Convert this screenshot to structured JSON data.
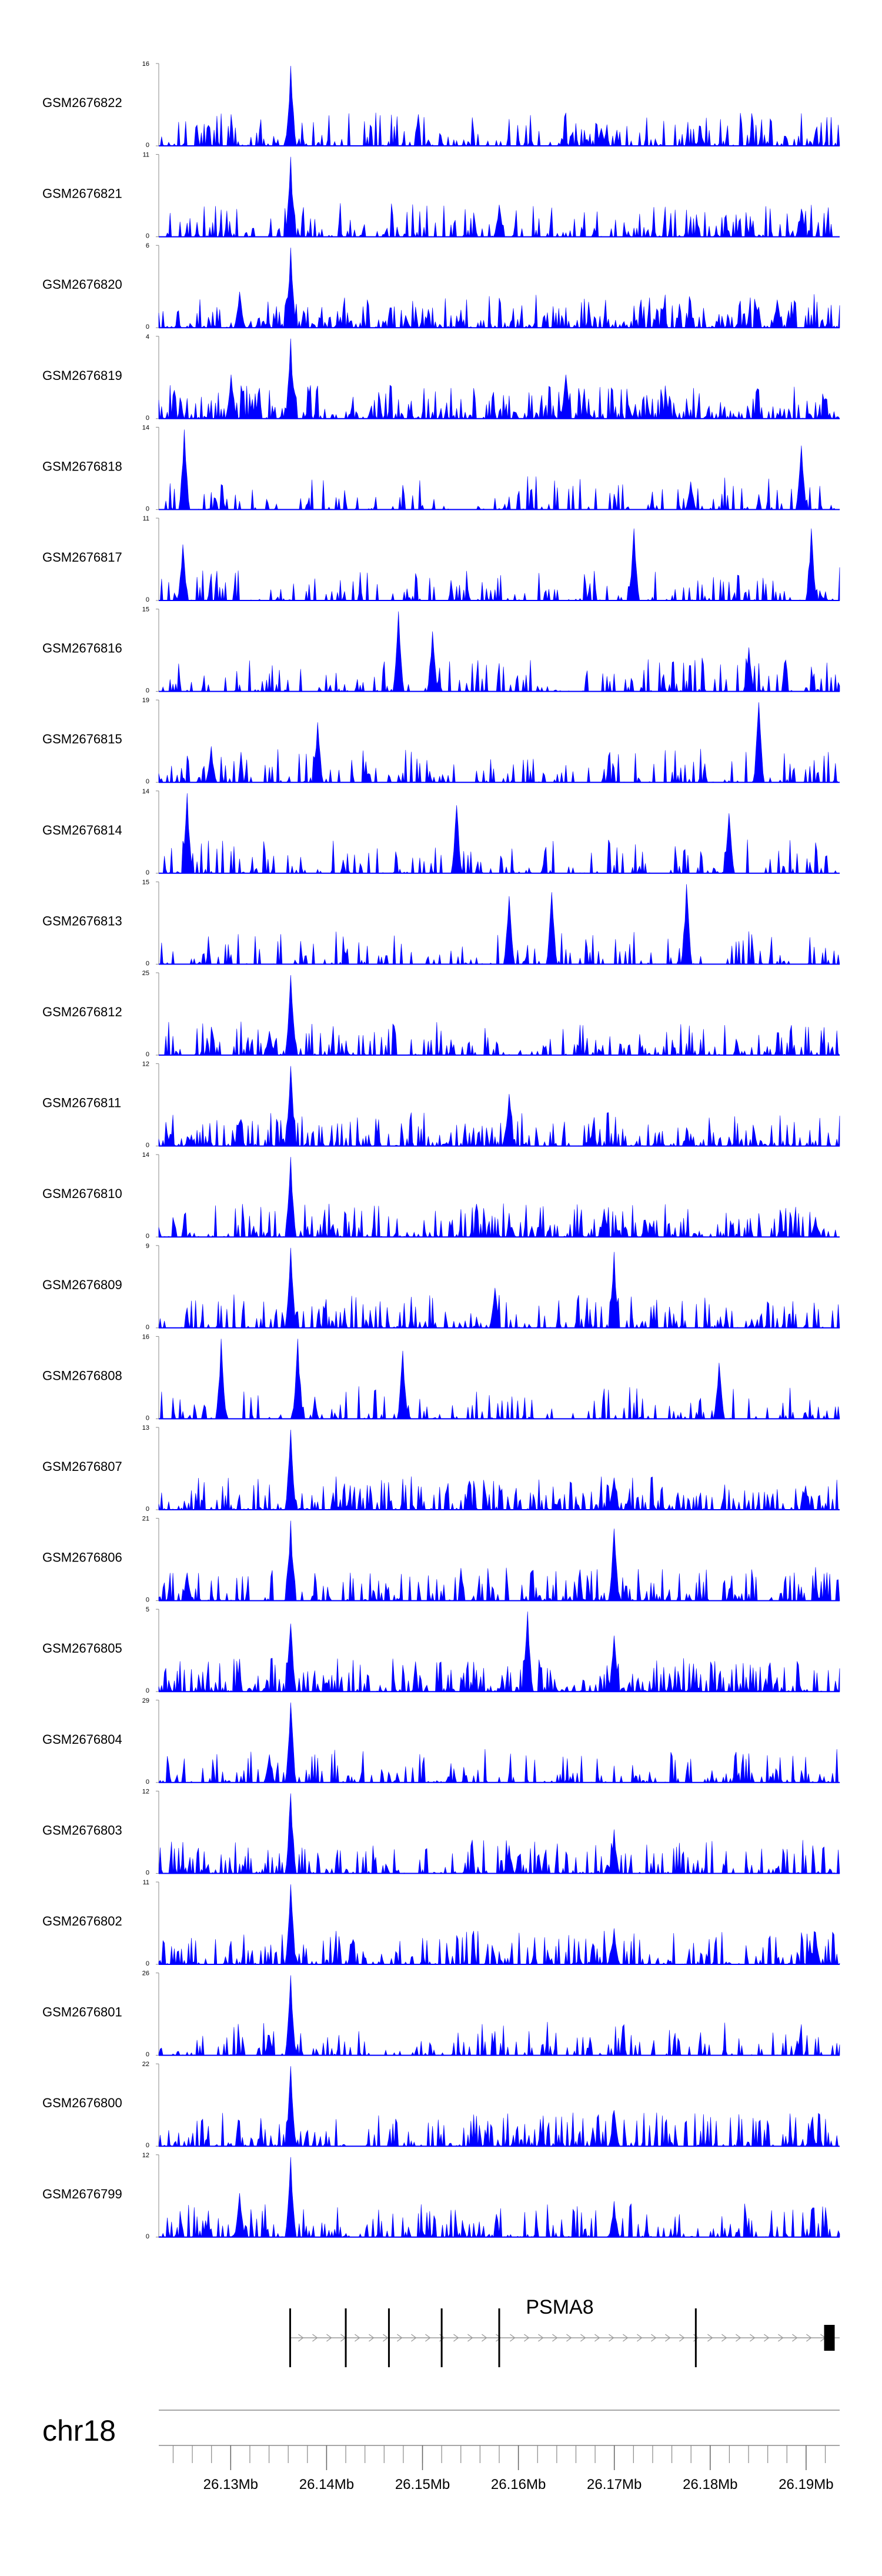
{
  "chart_data": {
    "type": "area",
    "title": "",
    "chromosome": "chr18",
    "x_range_mb": [
      26.1225,
      26.1935
    ],
    "fill_color": "#0000ff",
    "tracks": [
      {
        "name": "GSM2676822",
        "ymax": "16",
        "ymin": "0",
        "seed": 1,
        "density": 0.55,
        "peaks": [
          {
            "x": 26.1362,
            "h": 1.0
          },
          {
            "x": 26.1687,
            "h": 0.22
          },
          {
            "x": 26.179,
            "h": 0.15
          }
        ]
      },
      {
        "name": "GSM2676821",
        "ymax": "11",
        "ymin": "0",
        "seed": 2,
        "density": 0.5,
        "peaks": [
          {
            "x": 26.1362,
            "h": 1.0
          },
          {
            "x": 26.158,
            "h": 0.4
          },
          {
            "x": 26.1895,
            "h": 0.35
          }
        ]
      },
      {
        "name": "GSM2676820",
        "ymax": "6",
        "ymin": "0",
        "seed": 3,
        "density": 0.7,
        "peaks": [
          {
            "x": 26.1362,
            "h": 1.0
          },
          {
            "x": 26.131,
            "h": 0.45
          },
          {
            "x": 26.187,
            "h": 0.35
          }
        ]
      },
      {
        "name": "GSM2676819",
        "ymax": "4",
        "ymin": "0",
        "seed": 4,
        "density": 0.75,
        "peaks": [
          {
            "x": 26.1362,
            "h": 1.0
          },
          {
            "x": 26.13,
            "h": 0.55
          },
          {
            "x": 26.165,
            "h": 0.55
          }
        ]
      },
      {
        "name": "GSM2676818",
        "ymax": "14",
        "ymin": "0",
        "seed": 5,
        "density": 0.35,
        "peaks": [
          {
            "x": 26.1252,
            "h": 1.0
          },
          {
            "x": 26.1895,
            "h": 0.8
          },
          {
            "x": 26.178,
            "h": 0.35
          }
        ]
      },
      {
        "name": "GSM2676817",
        "ymax": "11",
        "ymin": "0",
        "seed": 6,
        "density": 0.4,
        "peaks": [
          {
            "x": 26.172,
            "h": 0.9
          },
          {
            "x": 26.1905,
            "h": 0.9
          },
          {
            "x": 26.125,
            "h": 0.7
          }
        ]
      },
      {
        "name": "GSM2676816",
        "ymax": "15",
        "ymin": "0",
        "seed": 7,
        "density": 0.4,
        "peaks": [
          {
            "x": 26.1475,
            "h": 1.0
          },
          {
            "x": 26.151,
            "h": 0.75
          },
          {
            "x": 26.184,
            "h": 0.55
          }
        ]
      },
      {
        "name": "GSM2676815",
        "ymax": "19",
        "ymin": "0",
        "seed": 8,
        "density": 0.38,
        "peaks": [
          {
            "x": 26.185,
            "h": 1.0
          },
          {
            "x": 26.139,
            "h": 0.75
          },
          {
            "x": 26.128,
            "h": 0.45
          }
        ]
      },
      {
        "name": "GSM2676814",
        "ymax": "14",
        "ymin": "0",
        "seed": 9,
        "density": 0.38,
        "peaks": [
          {
            "x": 26.1255,
            "h": 1.0
          },
          {
            "x": 26.1535,
            "h": 0.85
          },
          {
            "x": 26.182,
            "h": 0.75
          }
        ]
      },
      {
        "name": "GSM2676813",
        "ymax": "15",
        "ymin": "0",
        "seed": 10,
        "density": 0.35,
        "peaks": [
          {
            "x": 26.1775,
            "h": 1.0
          },
          {
            "x": 26.1635,
            "h": 0.9
          },
          {
            "x": 26.159,
            "h": 0.85
          }
        ]
      },
      {
        "name": "GSM2676812",
        "ymax": "25",
        "ymin": "0",
        "seed": 11,
        "density": 0.55,
        "peaks": [
          {
            "x": 26.1362,
            "h": 1.0
          },
          {
            "x": 26.134,
            "h": 0.3
          }
        ]
      },
      {
        "name": "GSM2676811",
        "ymax": "12",
        "ymin": "0",
        "seed": 12,
        "density": 0.6,
        "peaks": [
          {
            "x": 26.1362,
            "h": 1.0
          },
          {
            "x": 26.159,
            "h": 0.65
          },
          {
            "x": 26.131,
            "h": 0.3
          }
        ]
      },
      {
        "name": "GSM2676810",
        "ymax": "14",
        "ymin": "0",
        "seed": 13,
        "density": 0.6,
        "peaks": [
          {
            "x": 26.1362,
            "h": 1.0
          },
          {
            "x": 26.169,
            "h": 0.35
          },
          {
            "x": 26.191,
            "h": 0.25
          }
        ]
      },
      {
        "name": "GSM2676809",
        "ymax": "9",
        "ymin": "0",
        "seed": 14,
        "density": 0.55,
        "peaks": [
          {
            "x": 26.1362,
            "h": 1.0
          },
          {
            "x": 26.17,
            "h": 0.95
          },
          {
            "x": 26.1575,
            "h": 0.5
          }
        ]
      },
      {
        "name": "GSM2676808",
        "ymax": "16",
        "ymin": "0",
        "seed": 15,
        "density": 0.35,
        "peaks": [
          {
            "x": 26.129,
            "h": 1.0
          },
          {
            "x": 26.137,
            "h": 1.0
          },
          {
            "x": 26.148,
            "h": 0.85
          },
          {
            "x": 26.181,
            "h": 0.7
          }
        ]
      },
      {
        "name": "GSM2676807",
        "ymax": "13",
        "ymin": "0",
        "seed": 16,
        "density": 0.6,
        "peaks": [
          {
            "x": 26.1362,
            "h": 1.0
          },
          {
            "x": 26.17,
            "h": 0.4
          },
          {
            "x": 26.19,
            "h": 0.3
          }
        ]
      },
      {
        "name": "GSM2676806",
        "ymax": "21",
        "ymin": "0",
        "seed": 17,
        "density": 0.5,
        "peaks": [
          {
            "x": 26.1362,
            "h": 1.0
          },
          {
            "x": 26.17,
            "h": 0.9
          },
          {
            "x": 26.1255,
            "h": 0.35
          }
        ]
      },
      {
        "name": "GSM2676805",
        "ymax": "5",
        "ymin": "0",
        "seed": 18,
        "density": 0.7,
        "peaks": [
          {
            "x": 26.161,
            "h": 1.0
          },
          {
            "x": 26.1362,
            "h": 0.85
          },
          {
            "x": 26.17,
            "h": 0.7
          }
        ]
      },
      {
        "name": "GSM2676804",
        "ymax": "29",
        "ymin": "0",
        "seed": 19,
        "density": 0.45,
        "peaks": [
          {
            "x": 26.1362,
            "h": 1.0
          },
          {
            "x": 26.134,
            "h": 0.35
          }
        ]
      },
      {
        "name": "GSM2676803",
        "ymax": "12",
        "ymin": "0",
        "seed": 20,
        "density": 0.6,
        "peaks": [
          {
            "x": 26.1362,
            "h": 1.0
          },
          {
            "x": 26.17,
            "h": 0.55
          },
          {
            "x": 26.159,
            "h": 0.35
          }
        ]
      },
      {
        "name": "GSM2676802",
        "ymax": "11",
        "ymin": "0",
        "seed": 21,
        "density": 0.6,
        "peaks": [
          {
            "x": 26.1362,
            "h": 1.0
          },
          {
            "x": 26.17,
            "h": 0.45
          },
          {
            "x": 26.191,
            "h": 0.4
          }
        ]
      },
      {
        "name": "GSM2676801",
        "ymax": "26",
        "ymin": "0",
        "seed": 22,
        "density": 0.4,
        "peaks": [
          {
            "x": 26.1362,
            "h": 1.0
          },
          {
            "x": 26.134,
            "h": 0.25
          }
        ]
      },
      {
        "name": "GSM2676800",
        "ymax": "22",
        "ymin": "0",
        "seed": 23,
        "density": 0.55,
        "peaks": [
          {
            "x": 26.1362,
            "h": 1.0
          },
          {
            "x": 26.17,
            "h": 0.45
          },
          {
            "x": 26.1905,
            "h": 0.3
          }
        ]
      },
      {
        "name": "GSM2676799",
        "ymax": "12",
        "ymin": "0",
        "seed": 24,
        "density": 0.6,
        "peaks": [
          {
            "x": 26.1362,
            "h": 1.0
          },
          {
            "x": 26.131,
            "h": 0.55
          },
          {
            "x": 26.17,
            "h": 0.45
          }
        ]
      }
    ],
    "gene": {
      "name": "PSMA8",
      "start_mb": 26.1362,
      "end_mb": 26.1935,
      "strand": "+",
      "exons_mb": [
        26.1362,
        26.142,
        26.1465,
        26.152,
        26.158,
        26.1785,
        26.192
      ]
    },
    "axis": {
      "tick_labels": [
        "26.13Mb",
        "26.14Mb",
        "26.15Mb",
        "26.16Mb",
        "26.17Mb",
        "26.18Mb",
        "26.19Mb"
      ],
      "tick_values_mb": [
        26.13,
        26.14,
        26.15,
        26.16,
        26.17,
        26.18,
        26.19
      ],
      "minor_step_mb": 0.002
    }
  }
}
